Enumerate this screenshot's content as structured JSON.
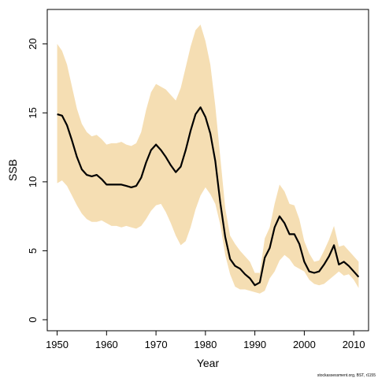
{
  "chart_data": {
    "type": "line",
    "title": "",
    "xlabel": "Year",
    "ylabel": "SSB",
    "xlim": [
      1948,
      2013
    ],
    "ylim": [
      -0.8,
      22.5
    ],
    "xticks": [
      1950,
      1960,
      1970,
      1980,
      1990,
      2000,
      2010
    ],
    "yticks": [
      0,
      5,
      10,
      15,
      20
    ],
    "grid": false,
    "legend": "none",
    "footnote": "stockassessment.org, BST, r1155",
    "colors": {
      "band": "#F5DEB3",
      "line": "#000000",
      "frame": "#000000"
    },
    "series": [
      {
        "x": [
          1950,
          1951,
          1952,
          1953,
          1954,
          1955,
          1956,
          1957,
          1958,
          1959,
          1960,
          1961,
          1962,
          1963,
          1964,
          1965,
          1966,
          1967,
          1968,
          1969,
          1970,
          1971,
          1972,
          1973,
          1974,
          1975,
          1976,
          1977,
          1978,
          1979,
          1980,
          1981,
          1982,
          1983,
          1984,
          1985,
          1986,
          1987,
          1988,
          1989,
          1990,
          1991,
          1992,
          1993,
          1994,
          1995,
          1996,
          1997,
          1998,
          1999,
          2000,
          2001,
          2002,
          2003,
          2004,
          2005,
          2006,
          2007,
          2008,
          2009,
          2010,
          2011
        ],
        "y": [
          14.9,
          14.8,
          14.1,
          13.0,
          11.8,
          10.9,
          10.5,
          10.4,
          10.5,
          10.2,
          9.8,
          9.8,
          9.8,
          9.8,
          9.7,
          9.6,
          9.7,
          10.3,
          11.4,
          12.3,
          12.7,
          12.3,
          11.8,
          11.2,
          10.7,
          11.1,
          12.3,
          13.7,
          14.9,
          15.4,
          14.7,
          13.5,
          11.5,
          8.5,
          6.0,
          4.4,
          3.9,
          3.7,
          3.3,
          3.0,
          2.5,
          2.7,
          4.5,
          5.2,
          6.7,
          7.5,
          7.0,
          6.2,
          6.2,
          5.5,
          4.2,
          3.5,
          3.4,
          3.5,
          4.0,
          4.6,
          5.4,
          4.0,
          4.2,
          3.9,
          3.5,
          3.1
        ],
        "lower": [
          9.9,
          10.1,
          9.7,
          9.0,
          8.3,
          7.7,
          7.3,
          7.1,
          7.1,
          7.2,
          7.0,
          6.8,
          6.8,
          6.7,
          6.8,
          6.7,
          6.6,
          6.8,
          7.3,
          7.9,
          8.3,
          8.4,
          7.8,
          7.0,
          6.1,
          5.4,
          5.7,
          6.7,
          8.0,
          9.0,
          9.6,
          9.1,
          8.4,
          6.9,
          4.7,
          3.3,
          2.4,
          2.2,
          2.2,
          2.1,
          2.0,
          1.9,
          2.1,
          3.0,
          3.5,
          4.3,
          4.7,
          4.4,
          3.9,
          3.7,
          3.5,
          2.9,
          2.6,
          2.5,
          2.6,
          2.9,
          3.2,
          3.5,
          3.2,
          3.3,
          2.9,
          2.3
        ],
        "upper": [
          20.0,
          19.5,
          18.5,
          16.9,
          15.3,
          14.2,
          13.6,
          13.3,
          13.4,
          13.1,
          12.7,
          12.8,
          12.8,
          12.9,
          12.7,
          12.6,
          12.8,
          13.6,
          15.2,
          16.5,
          17.1,
          16.9,
          16.7,
          16.3,
          15.9,
          16.8,
          18.3,
          19.8,
          21.0,
          21.4,
          20.2,
          18.5,
          15.5,
          11.8,
          8.1,
          6.1,
          5.5,
          5.0,
          4.6,
          4.2,
          3.4,
          3.4,
          5.9,
          6.7,
          8.4,
          9.8,
          9.3,
          8.4,
          8.3,
          7.3,
          5.7,
          4.8,
          4.2,
          4.3,
          5.0,
          5.8,
          6.8,
          5.3,
          5.4,
          5.0,
          4.6,
          4.2
        ]
      }
    ]
  }
}
